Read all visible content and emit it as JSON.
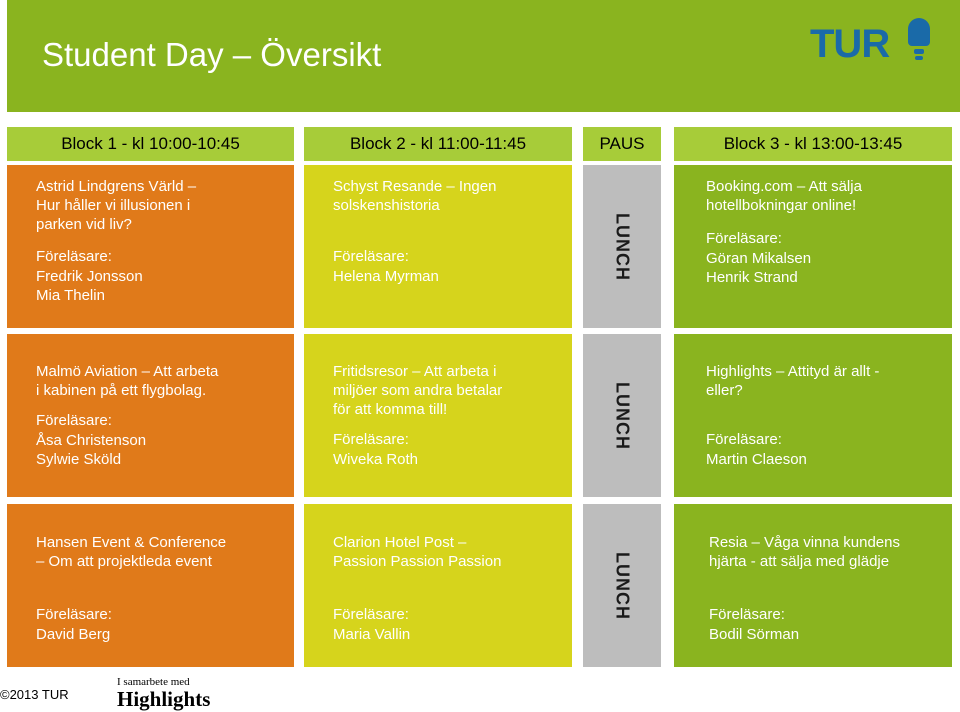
{
  "title": "Student Day – Översikt",
  "logo": {
    "text": "TUR"
  },
  "headers": {
    "block1": "Block 1 - kl 10:00-10:45",
    "block2": "Block 2 - kl 11:00-11:45",
    "pause": "PAUS",
    "block3": "Block 3 - kl 13:00-13:45"
  },
  "lunch_label": "LUNCH",
  "speaker_label": "Föreläsare:",
  "rows": [
    {
      "b1": {
        "lines": [
          "Astrid Lindgrens Värld –",
          "Hur håller vi illusionen i",
          "parken vid liv?"
        ],
        "speakers": [
          "Fredrik Jonsson",
          "Mia Thelin"
        ]
      },
      "b2": {
        "lines": [
          "Schyst Resande – Ingen",
          "solskenshistoria"
        ],
        "speakers": [
          "Helena Myrman"
        ]
      },
      "b3": {
        "lines": [
          "Booking.com – Att sälja",
          "hotellbokningar online!"
        ],
        "speakers": [
          "Göran Mikalsen",
          "Henrik Strand"
        ]
      }
    },
    {
      "b1": {
        "lines": [
          "Malmö Aviation – Att arbeta",
          "i kabinen på ett flygbolag."
        ],
        "speakers": [
          "Åsa Christenson",
          "Sylwie Sköld"
        ]
      },
      "b2": {
        "lines": [
          "Fritidsresor – Att arbeta i",
          "miljöer som andra betalar",
          "för att komma till!"
        ],
        "speakers": [
          "Wiveka Roth"
        ]
      },
      "b3": {
        "lines": [
          "Highlights – Attityd är allt -",
          "eller?"
        ],
        "speakers": [
          "Martin Claeson"
        ]
      }
    },
    {
      "b1": {
        "lines": [
          "Hansen Event & Conference",
          "– Om att projektleda event"
        ],
        "speakers": [
          "David Berg"
        ]
      },
      "b2": {
        "lines": [
          "Clarion Hotel Post –",
          "Passion Passion Passion"
        ],
        "speakers": [
          "Maria Vallin"
        ]
      },
      "b3": {
        "lines": [
          "Resia – Våga vinna kundens",
          "hjärta - att sälja med glädje"
        ],
        "speakers": [
          "Bodil Sörman"
        ]
      }
    }
  ],
  "footer": {
    "copyright": "©2013 TUR",
    "partner_small": "I samarbete med",
    "partner_name": "Highlights"
  }
}
